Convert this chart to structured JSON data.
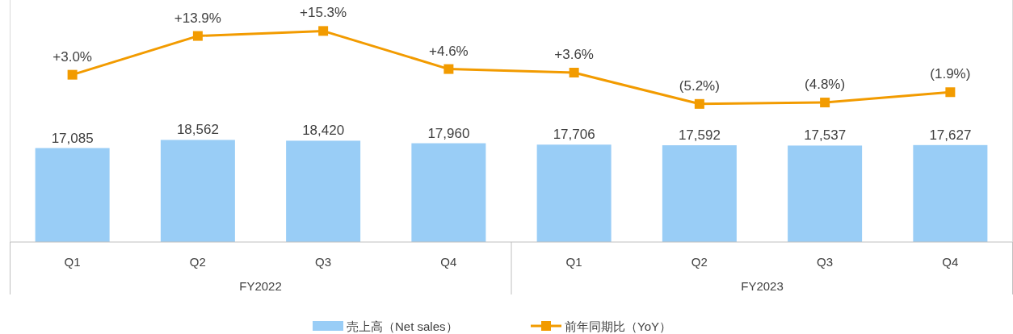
{
  "chart_data": {
    "type": "bar",
    "categories": [
      "Q1",
      "Q2",
      "Q3",
      "Q4",
      "Q1",
      "Q2",
      "Q3",
      "Q4"
    ],
    "series": [
      {
        "name": "売上高（Net sales）",
        "color": "#99cdf6",
        "values": [
          17085,
          18562,
          18420,
          17960,
          17706,
          17592,
          17537,
          17627
        ],
        "value_labels": [
          "17,085",
          "18,562",
          "18,420",
          "17,960",
          "17,706",
          "17,592",
          "17,537",
          "17,627"
        ]
      },
      {
        "name": "前年同期比（YoY）",
        "type": "line",
        "axis": "y2",
        "color": "#f29b00",
        "values": [
          3.0,
          13.9,
          15.3,
          4.6,
          3.6,
          -5.2,
          -4.8,
          -1.9
        ],
        "value_labels": [
          "+3.0%",
          "+13.9%",
          "+15.3%",
          "+4.6%",
          "+3.6%",
          "(5.2%)",
          "(4.8%)",
          "(1.9%)"
        ]
      }
    ],
    "annotations": [
      "FY2022",
      "FY2023"
    ],
    "ylim": [
      0,
      44000
    ],
    "y2lim": [
      -44,
      24
    ],
    "data_labels": true,
    "marker": "square",
    "legend": "bottom",
    "grid": false
  }
}
